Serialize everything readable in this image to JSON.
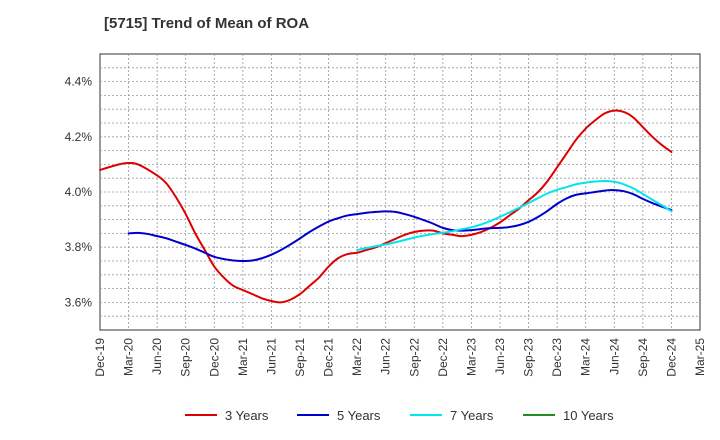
{
  "chart_data": {
    "type": "line",
    "title": "[5715]  Trend of Mean of ROA",
    "xlabel": "",
    "ylabel": "",
    "x_ticks": [
      "Dec-19",
      "Mar-20",
      "Jun-20",
      "Sep-20",
      "Dec-20",
      "Mar-21",
      "Jun-21",
      "Sep-21",
      "Dec-21",
      "Mar-22",
      "Jun-22",
      "Sep-22",
      "Dec-22",
      "Mar-23",
      "Jun-23",
      "Sep-23",
      "Dec-23",
      "Mar-24",
      "Jun-24",
      "Sep-24",
      "Dec-24",
      "Mar-25"
    ],
    "y_ticks": [
      "3.6%",
      "3.8%",
      "4.0%",
      "4.2%",
      "4.4%"
    ],
    "y_tick_values": [
      3.6,
      3.8,
      4.0,
      4.2,
      4.4
    ],
    "ylim": [
      3.5,
      4.5
    ],
    "grid": true,
    "legend_position": "bottom",
    "series": [
      {
        "name": "3 Years",
        "color": "#dd0000",
        "points": [
          [
            "Dec-19",
            4.08
          ],
          [
            "Feb-20",
            4.1
          ],
          [
            "Mar-20",
            4.105
          ],
          [
            "Apr-20",
            4.1
          ],
          [
            "Jun-20",
            4.06
          ],
          [
            "Jul-20",
            4.03
          ],
          [
            "Aug-20",
            3.98
          ],
          [
            "Sep-20",
            3.92
          ],
          [
            "Oct-20",
            3.85
          ],
          [
            "Nov-20",
            3.79
          ],
          [
            "Dec-20",
            3.73
          ],
          [
            "Jan-21",
            3.69
          ],
          [
            "Feb-21",
            3.66
          ],
          [
            "Mar-21",
            3.645
          ],
          [
            "Apr-21",
            3.63
          ],
          [
            "May-21",
            3.615
          ],
          [
            "Jun-21",
            3.605
          ],
          [
            "Jul-21",
            3.6
          ],
          [
            "Aug-21",
            3.61
          ],
          [
            "Sep-21",
            3.63
          ],
          [
            "Oct-21",
            3.66
          ],
          [
            "Nov-21",
            3.69
          ],
          [
            "Dec-21",
            3.73
          ],
          [
            "Jan-22",
            3.76
          ],
          [
            "Feb-22",
            3.775
          ],
          [
            "Mar-22",
            3.78
          ],
          [
            "Apr-22",
            3.79
          ],
          [
            "May-22",
            3.8
          ],
          [
            "Jun-22",
            3.815
          ],
          [
            "Jul-22",
            3.83
          ],
          [
            "Aug-22",
            3.845
          ],
          [
            "Sep-22",
            3.855
          ],
          [
            "Oct-22",
            3.86
          ],
          [
            "Nov-22",
            3.86
          ],
          [
            "Dec-22",
            3.85
          ],
          [
            "Jan-23",
            3.845
          ],
          [
            "Feb-23",
            3.84
          ],
          [
            "Mar-23",
            3.845
          ],
          [
            "Apr-23",
            3.855
          ],
          [
            "May-23",
            3.87
          ],
          [
            "Jun-23",
            3.89
          ],
          [
            "Jul-23",
            3.915
          ],
          [
            "Aug-23",
            3.94
          ],
          [
            "Sep-23",
            3.97
          ],
          [
            "Oct-23",
            4.0
          ],
          [
            "Nov-23",
            4.04
          ],
          [
            "Dec-23",
            4.09
          ],
          [
            "Jan-24",
            4.14
          ],
          [
            "Feb-24",
            4.19
          ],
          [
            "Mar-24",
            4.23
          ],
          [
            "Apr-24",
            4.26
          ],
          [
            "May-24",
            4.285
          ],
          [
            "Jun-24",
            4.295
          ],
          [
            "Jul-24",
            4.29
          ],
          [
            "Aug-24",
            4.27
          ],
          [
            "Sep-24",
            4.235
          ],
          [
            "Oct-24",
            4.2
          ],
          [
            "Nov-24",
            4.17
          ],
          [
            "Dec-24",
            4.145
          ]
        ]
      },
      {
        "name": "5 Years",
        "color": "#0000cc",
        "points": [
          [
            "Mar-20",
            3.85
          ],
          [
            "Apr-20",
            3.852
          ],
          [
            "May-20",
            3.848
          ],
          [
            "Jun-20",
            3.84
          ],
          [
            "Jul-20",
            3.832
          ],
          [
            "Aug-20",
            3.82
          ],
          [
            "Sep-20",
            3.808
          ],
          [
            "Oct-20",
            3.795
          ],
          [
            "Nov-20",
            3.78
          ],
          [
            "Dec-20",
            3.765
          ],
          [
            "Jan-21",
            3.757
          ],
          [
            "Feb-21",
            3.752
          ],
          [
            "Mar-21",
            3.75
          ],
          [
            "Apr-21",
            3.752
          ],
          [
            "May-21",
            3.76
          ],
          [
            "Jun-21",
            3.773
          ],
          [
            "Jul-21",
            3.79
          ],
          [
            "Aug-21",
            3.81
          ],
          [
            "Sep-21",
            3.832
          ],
          [
            "Oct-21",
            3.855
          ],
          [
            "Nov-21",
            3.875
          ],
          [
            "Dec-21",
            3.893
          ],
          [
            "Jan-22",
            3.905
          ],
          [
            "Feb-22",
            3.915
          ],
          [
            "Mar-22",
            3.92
          ],
          [
            "Apr-22",
            3.925
          ],
          [
            "May-22",
            3.928
          ],
          [
            "Jun-22",
            3.93
          ],
          [
            "Jul-22",
            3.928
          ],
          [
            "Aug-22",
            3.92
          ],
          [
            "Sep-22",
            3.91
          ],
          [
            "Oct-22",
            3.898
          ],
          [
            "Nov-22",
            3.885
          ],
          [
            "Dec-22",
            3.87
          ],
          [
            "Jan-23",
            3.862
          ],
          [
            "Feb-23",
            3.86
          ],
          [
            "Mar-23",
            3.862
          ],
          [
            "Apr-23",
            3.866
          ],
          [
            "May-23",
            3.869
          ],
          [
            "Jun-23",
            3.87
          ],
          [
            "Jul-23",
            3.873
          ],
          [
            "Aug-23",
            3.88
          ],
          [
            "Sep-23",
            3.892
          ],
          [
            "Oct-23",
            3.91
          ],
          [
            "Nov-23",
            3.932
          ],
          [
            "Dec-23",
            3.957
          ],
          [
            "Jan-24",
            3.977
          ],
          [
            "Feb-24",
            3.99
          ],
          [
            "Mar-24",
            3.995
          ],
          [
            "Apr-24",
            4.0
          ],
          [
            "May-24",
            4.005
          ],
          [
            "Jun-24",
            4.007
          ],
          [
            "Jul-24",
            4.003
          ],
          [
            "Aug-24",
            3.992
          ],
          [
            "Sep-24",
            3.975
          ],
          [
            "Oct-24",
            3.96
          ],
          [
            "Nov-24",
            3.947
          ],
          [
            "Dec-24",
            3.935
          ]
        ]
      },
      {
        "name": "7 Years",
        "color": "#00e5ee",
        "points": [
          [
            "Mar-22",
            3.79
          ],
          [
            "Apr-22",
            3.797
          ],
          [
            "May-22",
            3.804
          ],
          [
            "Jun-22",
            3.81
          ],
          [
            "Jul-22",
            3.818
          ],
          [
            "Aug-22",
            3.826
          ],
          [
            "Sep-22",
            3.835
          ],
          [
            "Oct-22",
            3.842
          ],
          [
            "Nov-22",
            3.848
          ],
          [
            "Dec-22",
            3.852
          ],
          [
            "Jan-23",
            3.858
          ],
          [
            "Feb-23",
            3.865
          ],
          [
            "Mar-23",
            3.872
          ],
          [
            "Apr-23",
            3.882
          ],
          [
            "May-23",
            3.895
          ],
          [
            "Jun-23",
            3.91
          ],
          [
            "Jul-23",
            3.926
          ],
          [
            "Aug-23",
            3.943
          ],
          [
            "Sep-23",
            3.96
          ],
          [
            "Oct-23",
            3.978
          ],
          [
            "Nov-23",
            3.995
          ],
          [
            "Dec-23",
            4.008
          ],
          [
            "Jan-24",
            4.018
          ],
          [
            "Feb-24",
            4.028
          ],
          [
            "Mar-24",
            4.034
          ],
          [
            "Apr-24",
            4.038
          ],
          [
            "May-24",
            4.04
          ],
          [
            "Jun-24",
            4.037
          ],
          [
            "Jul-24",
            4.028
          ],
          [
            "Aug-24",
            4.013
          ],
          [
            "Sep-24",
            3.993
          ],
          [
            "Oct-24",
            3.972
          ],
          [
            "Nov-24",
            3.952
          ],
          [
            "Dec-24",
            3.93
          ]
        ]
      },
      {
        "name": "10 Years",
        "color": "#228b22",
        "points": []
      }
    ]
  }
}
